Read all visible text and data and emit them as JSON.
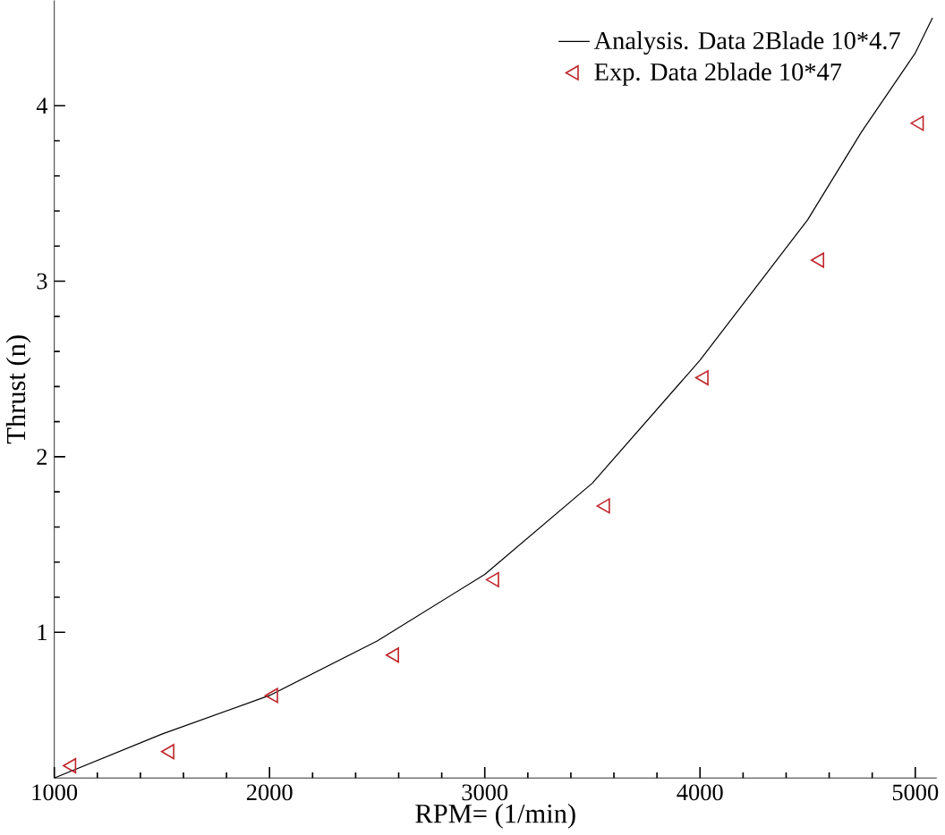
{
  "chart_data": {
    "type": "line",
    "xlabel": "RPM= (1/min)",
    "ylabel": "Thrust (n)",
    "xlim": [
      1000,
      5100
    ],
    "ylim": [
      0.17,
      4.6
    ],
    "xticks": [
      1000,
      2000,
      3000,
      4000,
      5000
    ],
    "yticks": [
      1,
      2,
      3,
      4
    ],
    "legend": "top right",
    "grid": false,
    "series": [
      {
        "name": "Analysis. Data 2Blade 10*4.7",
        "color": "#000000",
        "marker": "none",
        "x": [
          1000,
          1500,
          2000,
          2500,
          3000,
          3500,
          4000,
          4500,
          4750,
          5000,
          5080
        ],
        "values": [
          0.17,
          0.42,
          0.64,
          0.95,
          1.33,
          1.85,
          2.55,
          3.35,
          3.85,
          4.3,
          4.5
        ]
      },
      {
        "name": "Exp. Data 2blade 10*47",
        "type": "scatter",
        "color": "#c0272d",
        "marker": "triangle",
        "x": [
          1080,
          1536,
          2018,
          2580,
          3045,
          3560,
          4018,
          4555,
          5018
        ],
        "values": [
          0.24,
          0.32,
          0.64,
          0.87,
          1.3,
          1.72,
          2.45,
          3.12,
          3.9
        ]
      }
    ]
  }
}
